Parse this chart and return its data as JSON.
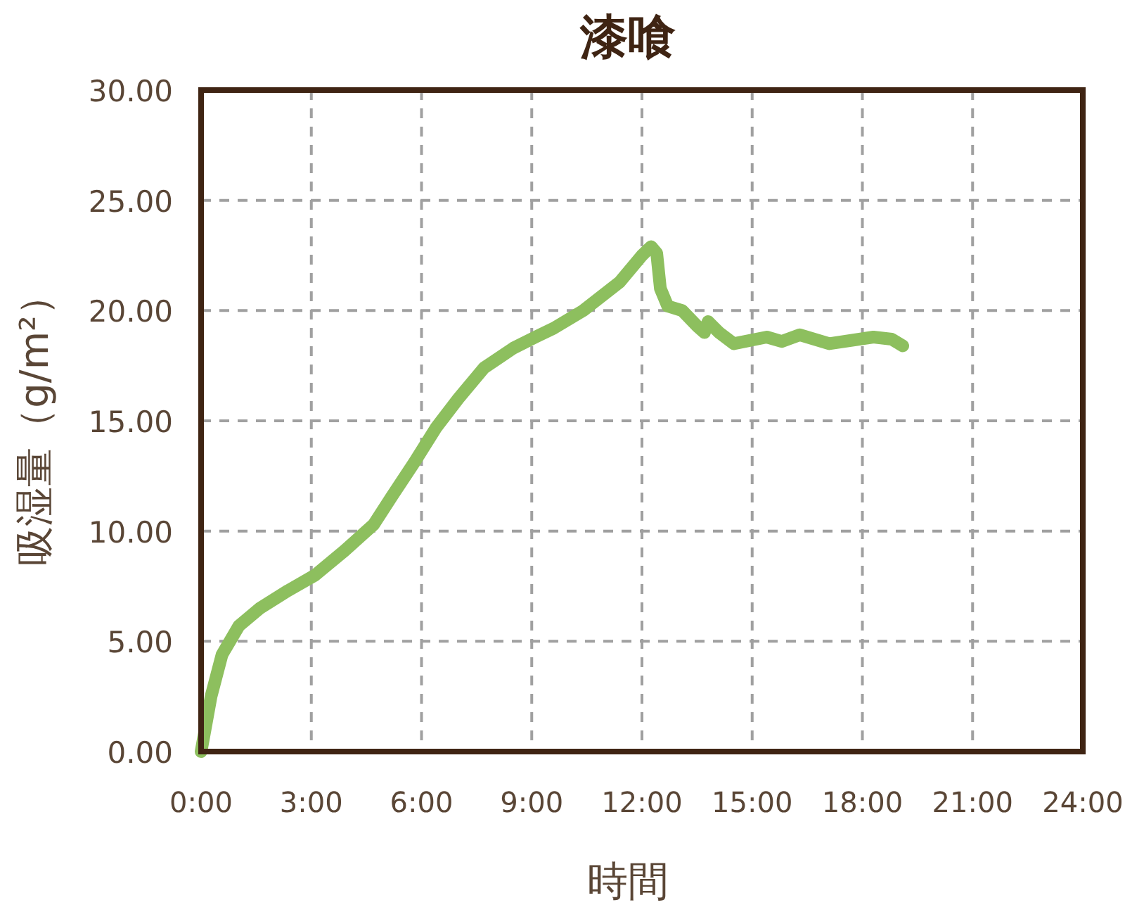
{
  "chart_data": {
    "type": "line",
    "title": "漆喰",
    "xlabel": "時間",
    "ylabel": "吸湿量（g/m²）",
    "xlim": [
      0,
      24
    ],
    "xticks": [
      {
        "value": 0,
        "label": "0:00"
      },
      {
        "value": 3,
        "label": "3:00"
      },
      {
        "value": 6,
        "label": "6:00"
      },
      {
        "value": 9,
        "label": "9:00"
      },
      {
        "value": 12,
        "label": "12:00"
      },
      {
        "value": 15,
        "label": "15:00"
      },
      {
        "value": 18,
        "label": "18:00"
      },
      {
        "value": 21,
        "label": "21:00"
      },
      {
        "value": 24,
        "label": "24:00"
      }
    ],
    "ylim": [
      0,
      30
    ],
    "yticks": [
      {
        "value": 0,
        "label": "0.00"
      },
      {
        "value": 5,
        "label": "5.00"
      },
      {
        "value": 10,
        "label": "10.00"
      },
      {
        "value": 15,
        "label": "15.00"
      },
      {
        "value": 20,
        "label": "20.00"
      },
      {
        "value": 25,
        "label": "25.00"
      },
      {
        "value": 30,
        "label": "30.00"
      }
    ],
    "grid": true,
    "marker": "none",
    "line_style": "solid",
    "x": [
      0,
      0.27,
      0.57,
      1.03,
      1.6,
      2.37,
      3.1,
      3.9,
      4.7,
      5.2,
      5.8,
      6.4,
      7.0,
      7.7,
      8.5,
      9.1,
      9.6,
      10.4,
      11.4,
      12.0,
      12.25,
      12.4,
      12.5,
      12.7,
      13.1,
      13.5,
      13.7,
      13.8,
      14.1,
      14.5,
      15.4,
      15.8,
      16.3,
      17.1,
      18.3,
      18.8,
      19.1
    ],
    "series": [
      {
        "color": "#8dbf5e",
        "values": [
          0,
          2.5,
          4.4,
          5.7,
          6.5,
          7.3,
          8.0,
          9.1,
          10.3,
          11.6,
          13.1,
          14.7,
          16.0,
          17.4,
          18.3,
          18.8,
          19.2,
          20.0,
          21.3,
          22.5,
          22.9,
          22.6,
          21.0,
          20.2,
          20.0,
          19.3,
          19.0,
          19.5,
          19.0,
          18.5,
          18.8,
          18.6,
          18.9,
          18.5,
          18.8,
          18.7,
          18.4
        ]
      }
    ]
  }
}
